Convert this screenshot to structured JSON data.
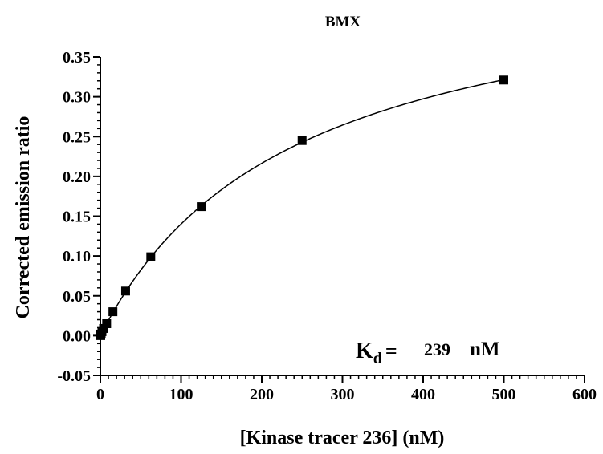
{
  "chart_data": {
    "type": "scatter",
    "title": "BMX",
    "xlabel": "[Kinase tracer 236] (nM)",
    "ylabel": "Corrected emission ratio",
    "xlim": [
      0,
      600
    ],
    "ylim": [
      -0.05,
      0.35
    ],
    "x_ticks": [
      "0",
      "100",
      "200",
      "300",
      "400",
      "500",
      "600"
    ],
    "y_ticks": [
      "-0.05",
      "0.00",
      "0.05",
      "0.10",
      "0.15",
      "0.20",
      "0.25",
      "0.30",
      "0.35"
    ],
    "x_tick_values": [
      0,
      100,
      200,
      300,
      400,
      500,
      600
    ],
    "y_tick_values": [
      -0.05,
      0.0,
      0.05,
      0.1,
      0.15,
      0.2,
      0.25,
      0.3,
      0.35
    ],
    "x_minor_step": 10,
    "y_minor_step": 0.01,
    "points": [
      {
        "x": 0.0,
        "y": 0.001
      },
      {
        "x": 0.5,
        "y": 0.0
      },
      {
        "x": 1.0,
        "y": 0.002
      },
      {
        "x": 2.0,
        "y": 0.005
      },
      {
        "x": 4.0,
        "y": 0.009
      },
      {
        "x": 7.8,
        "y": 0.015
      },
      {
        "x": 15.6,
        "y": 0.03
      },
      {
        "x": 31.3,
        "y": 0.056
      },
      {
        "x": 62.5,
        "y": 0.099
      },
      {
        "x": 125,
        "y": 0.162
      },
      {
        "x": 250,
        "y": 0.245
      },
      {
        "x": 500,
        "y": 0.321
      }
    ],
    "fit": {
      "model": "one-site binding",
      "bmax": 0.475,
      "kd": 239
    },
    "annotation": {
      "label": "K",
      "subscript": "d",
      "equals": "=",
      "value": "239",
      "unit": "nM"
    },
    "marker_color": "#000000",
    "line_color": "#000000",
    "grid": false,
    "legend": "none"
  }
}
